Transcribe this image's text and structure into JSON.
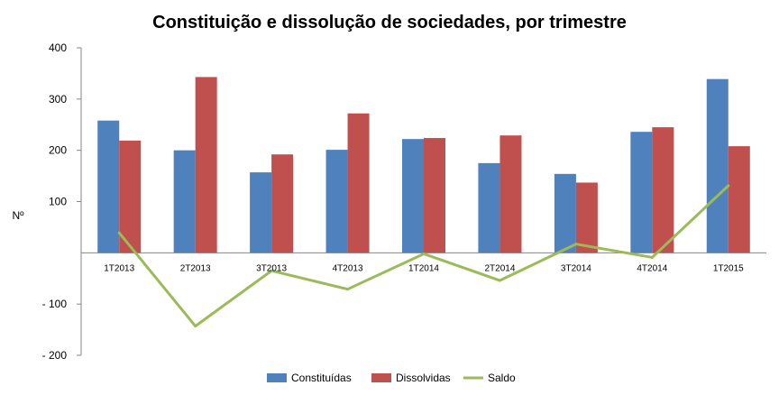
{
  "chart_data": {
    "type": "bar",
    "title": "Constituição e dissolução de sociedades, por trimestre",
    "ylabel": "Nº",
    "xlabel": "",
    "ylim": [
      -200,
      400
    ],
    "yticks": [
      {
        "value": 400,
        "label": "400"
      },
      {
        "value": 300,
        "label": "300"
      },
      {
        "value": 200,
        "label": "200"
      },
      {
        "value": 100,
        "label": "100"
      },
      {
        "value": -100,
        "label": "- 100"
      },
      {
        "value": -200,
        "label": "- 200"
      }
    ],
    "grid": false,
    "legend": "bottom",
    "categories": [
      "1T2013",
      "2T2013",
      "3T2013",
      "4T2013",
      "1T2014",
      "2T2014",
      "3T2014",
      "4T2014",
      "1T2015"
    ],
    "series": [
      {
        "name": "Constituídas",
        "kind": "bar",
        "color": "#4F81BD",
        "values": [
          258,
          200,
          157,
          201,
          222,
          175,
          154,
          236,
          339
        ]
      },
      {
        "name": "Dissolvidas",
        "kind": "bar",
        "color": "#C0504D",
        "values": [
          219,
          343,
          192,
          272,
          224,
          229,
          137,
          245,
          208
        ]
      },
      {
        "name": "Saldo",
        "kind": "line",
        "color": "#9BBB59",
        "values": [
          39,
          -143,
          -35,
          -71,
          -2,
          -54,
          17,
          -9,
          131
        ]
      }
    ]
  }
}
